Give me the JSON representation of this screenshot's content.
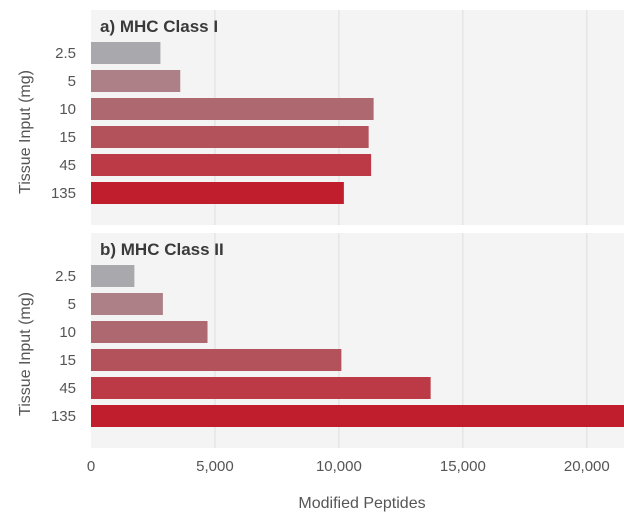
{
  "chart_data": {
    "type": "bar",
    "orientation": "horizontal",
    "xlabel": "Modified Peptides",
    "xlim": [
      0,
      21500
    ],
    "x_ticks": [
      0,
      5000,
      10000,
      15000,
      20000
    ],
    "x_tick_labels": [
      "0",
      "5,000",
      "10,000",
      "15,000",
      "20,000"
    ],
    "grid": "vertical",
    "bar_colors": [
      "#a9a9ad",
      "#ac8086",
      "#ad6870",
      "#b4525c",
      "#bb3a46",
      "#c01e2d"
    ],
    "panels": [
      {
        "title": "a) MHC Class I",
        "ylabel": "Tissue Input (mg)",
        "categories": [
          "2.5",
          "5",
          "10",
          "15",
          "45",
          "135"
        ],
        "values": [
          2800,
          3600,
          11400,
          11200,
          11300,
          10200
        ]
      },
      {
        "title": "b) MHC Class II",
        "ylabel": "Tissue Input (mg)",
        "categories": [
          "2.5",
          "5",
          "10",
          "15",
          "45",
          "135"
        ],
        "values": [
          1750,
          2900,
          4700,
          10100,
          13700,
          21600
        ]
      }
    ]
  }
}
